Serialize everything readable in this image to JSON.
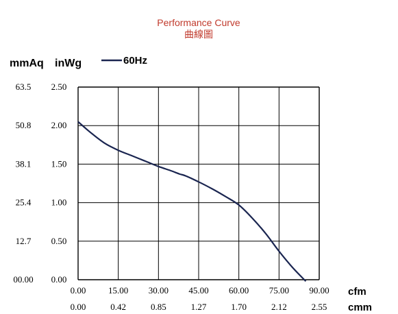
{
  "chart_data": {
    "type": "line",
    "title": "Performance Curve",
    "subtitle": "曲線圖",
    "left_unit_label": "mmAq",
    "right_unit_label": "inWg",
    "x_unit_primary": "cfm",
    "x_unit_secondary": "cmm",
    "x_ticks_primary": [
      "0.00",
      "15.00",
      "30.00",
      "45.00",
      "60.00",
      "75.00",
      "90.00"
    ],
    "x_ticks_secondary": [
      "0.00",
      "0.42",
      "0.85",
      "1.27",
      "1.70",
      "2.12",
      "2.55"
    ],
    "y_ticks_primary": [
      "00.00",
      "12.7",
      "25.4",
      "38.1",
      "50.8",
      "63.5"
    ],
    "y_ticks_secondary": [
      "0.00",
      "0.50",
      "1.00",
      "1.50",
      "2.00",
      "2.50"
    ],
    "xlim": [
      0,
      90
    ],
    "ylim": [
      0,
      2.5
    ],
    "grid": true,
    "legend_position": "top-left",
    "series": [
      {
        "name": "60Hz",
        "color": "#1a2550",
        "x": [
          0,
          5,
          10,
          15,
          20,
          25,
          30,
          35,
          38,
          40,
          45,
          50,
          55,
          60,
          65,
          70,
          75,
          80,
          85
        ],
        "y": [
          2.05,
          1.9,
          1.77,
          1.68,
          1.61,
          1.54,
          1.47,
          1.41,
          1.37,
          1.35,
          1.27,
          1.18,
          1.08,
          0.97,
          0.8,
          0.6,
          0.37,
          0.16,
          -0.02
        ]
      }
    ]
  }
}
